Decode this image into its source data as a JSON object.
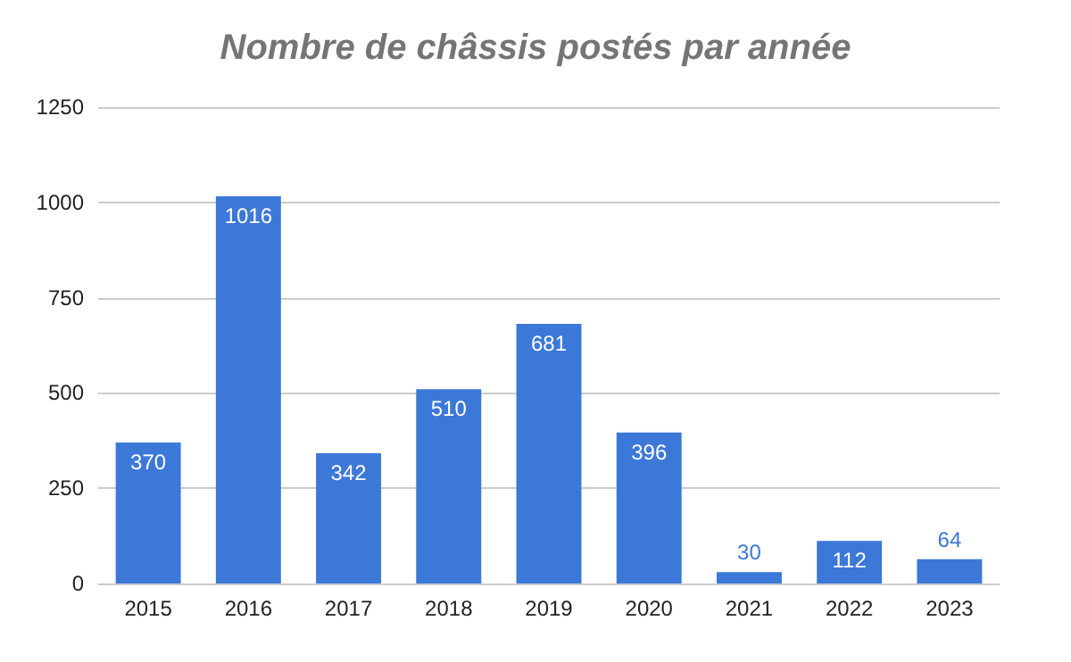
{
  "chart_data": {
    "type": "bar",
    "title": "Nombre de châssis postés par année",
    "categories": [
      "2015",
      "2016",
      "2017",
      "2018",
      "2019",
      "2020",
      "2021",
      "2022",
      "2023"
    ],
    "values": [
      370,
      1016,
      342,
      510,
      681,
      396,
      30,
      112,
      64
    ],
    "color": "#3c78d8",
    "ylim": [
      0,
      1250
    ],
    "yticks": [
      0,
      250,
      500,
      750,
      1000,
      1250
    ],
    "grid": "y",
    "data_labels": true
  }
}
